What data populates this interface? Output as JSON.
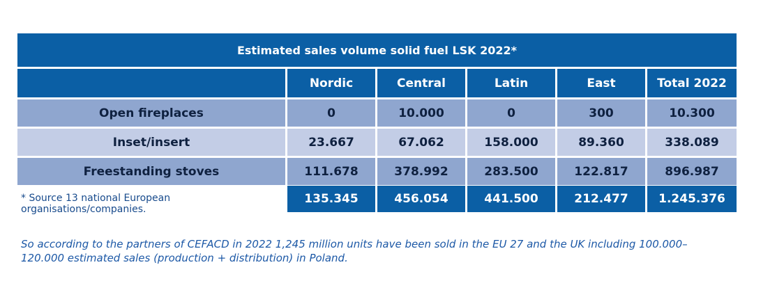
{
  "table": {
    "title": "Estimated sales volume solid fuel LSK 2022*",
    "columns": [
      "Nordic",
      "Central",
      "Latin",
      "East",
      "Total 2022"
    ],
    "rows": [
      {
        "label": "Open fireplaces",
        "values": [
          "0",
          "10.000",
          "0",
          "300",
          "10.300"
        ]
      },
      {
        "label": "Inset/insert",
        "values": [
          "23.667",
          "67.062",
          "158.000",
          "89.360",
          "338.089"
        ]
      },
      {
        "label": "Freestanding stoves",
        "values": [
          "111.678",
          "378.992",
          "283.500",
          "122.817",
          "896.987"
        ]
      }
    ],
    "totals": [
      "135.345",
      "456.054",
      "441.500",
      "212.477",
      "1.245.376"
    ]
  },
  "footnote": {
    "star": "*",
    "text": "Source 13 national European organisations/companies."
  },
  "summary": "So according to the partners of CEFACD in 2022 1,245 million units have been sold in the EU 27 and the UK including 100.000– 120.000 estimated sales (production + distribution) in Poland.",
  "colors": {
    "header_blue": "#0b5fa5",
    "row_blue": "#8fa6cf",
    "row_light": "#c3cde6",
    "text_dark": "#0f2140",
    "note_blue": "#1c58a6"
  }
}
